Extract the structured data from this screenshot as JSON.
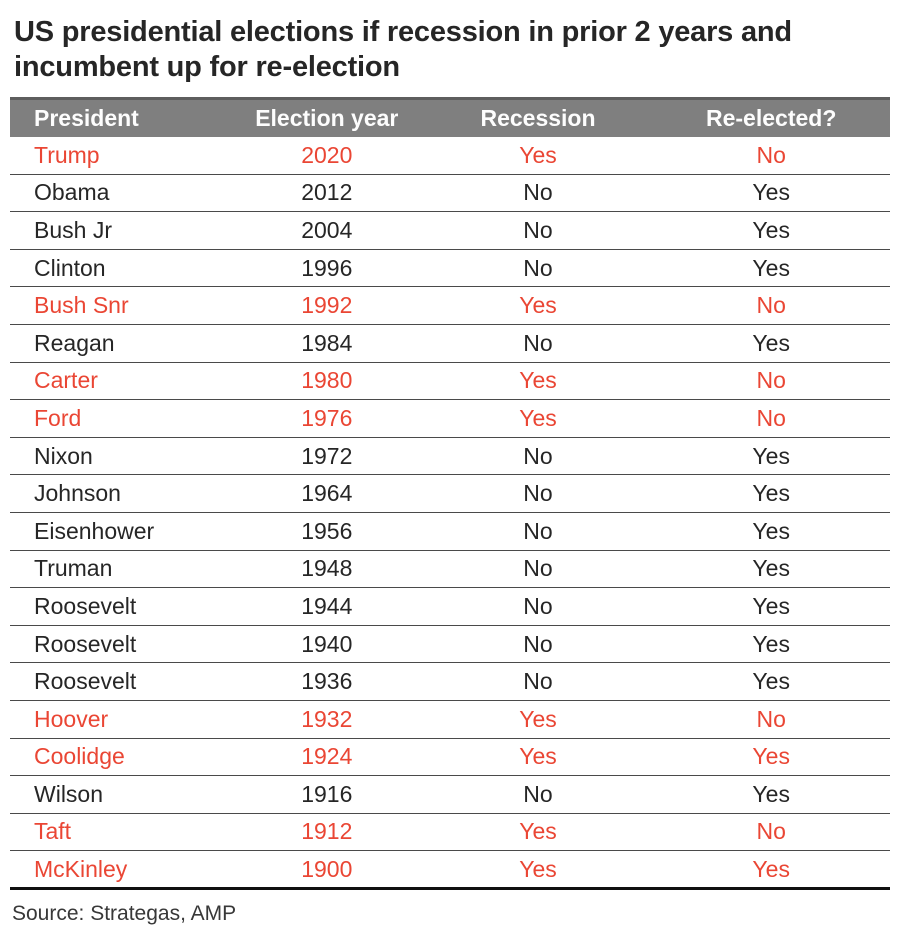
{
  "title_lines": [
    "US presidential elections if recession in prior 2 years and",
    "incumbent up for re-election"
  ],
  "source": "Source: Strategas, AMP",
  "colors": {
    "header_bg": "#7f7f7f",
    "header_text": "#fdfdfd",
    "header_top_edge": "#5e5e5e",
    "row_divider": "#4a4a4a",
    "body_text": "#262626",
    "recession_red": "#ea4634",
    "table_bottom_border": "#101010"
  },
  "chart_data": {
    "type": "table",
    "title": "US presidential elections if recession in prior 2 years and incumbent up for re-election",
    "source": "Source: Strategas, AMP",
    "columns": [
      "President",
      "Election year",
      "Recession",
      "Re-elected?"
    ],
    "highlight_rule": "rows with Recession = Yes are shown in red",
    "rows": [
      {
        "president": "Trump",
        "election_year": "2020",
        "recession": "Yes",
        "re_elected": "No",
        "highlighted": true
      },
      {
        "president": "Obama",
        "election_year": "2012",
        "recession": "No",
        "re_elected": "Yes",
        "highlighted": false
      },
      {
        "president": "Bush Jr",
        "election_year": "2004",
        "recession": "No",
        "re_elected": "Yes",
        "highlighted": false
      },
      {
        "president": "Clinton",
        "election_year": "1996",
        "recession": "No",
        "re_elected": "Yes",
        "highlighted": false
      },
      {
        "president": "Bush Snr",
        "election_year": "1992",
        "recession": "Yes",
        "re_elected": "No",
        "highlighted": true
      },
      {
        "president": "Reagan",
        "election_year": "1984",
        "recession": "No",
        "re_elected": "Yes",
        "highlighted": false
      },
      {
        "president": "Carter",
        "election_year": "1980",
        "recession": "Yes",
        "re_elected": "No",
        "highlighted": true
      },
      {
        "president": "Ford",
        "election_year": "1976",
        "recession": "Yes",
        "re_elected": "No",
        "highlighted": true
      },
      {
        "president": "Nixon",
        "election_year": "1972",
        "recession": "No",
        "re_elected": "Yes",
        "highlighted": false
      },
      {
        "president": "Johnson",
        "election_year": "1964",
        "recession": "No",
        "re_elected": "Yes",
        "highlighted": false
      },
      {
        "president": "Eisenhower",
        "election_year": "1956",
        "recession": "No",
        "re_elected": "Yes",
        "highlighted": false
      },
      {
        "president": "Truman",
        "election_year": "1948",
        "recession": "No",
        "re_elected": "Yes",
        "highlighted": false
      },
      {
        "president": "Roosevelt",
        "election_year": "1944",
        "recession": "No",
        "re_elected": "Yes",
        "highlighted": false
      },
      {
        "president": "Roosevelt",
        "election_year": "1940",
        "recession": "No",
        "re_elected": "Yes",
        "highlighted": false
      },
      {
        "president": "Roosevelt",
        "election_year": "1936",
        "recession": "No",
        "re_elected": "Yes",
        "highlighted": false
      },
      {
        "president": "Hoover",
        "election_year": "1932",
        "recession": "Yes",
        "re_elected": "No",
        "highlighted": true
      },
      {
        "president": "Coolidge",
        "election_year": "1924",
        "recession": "Yes",
        "re_elected": "Yes",
        "highlighted": true
      },
      {
        "president": "Wilson",
        "election_year": "1916",
        "recession": "No",
        "re_elected": "Yes",
        "highlighted": false
      },
      {
        "president": "Taft",
        "election_year": "1912",
        "recession": "Yes",
        "re_elected": "No",
        "highlighted": true
      },
      {
        "president": "McKinley",
        "election_year": "1900",
        "recession": "Yes",
        "re_elected": "Yes",
        "highlighted": true
      }
    ]
  }
}
